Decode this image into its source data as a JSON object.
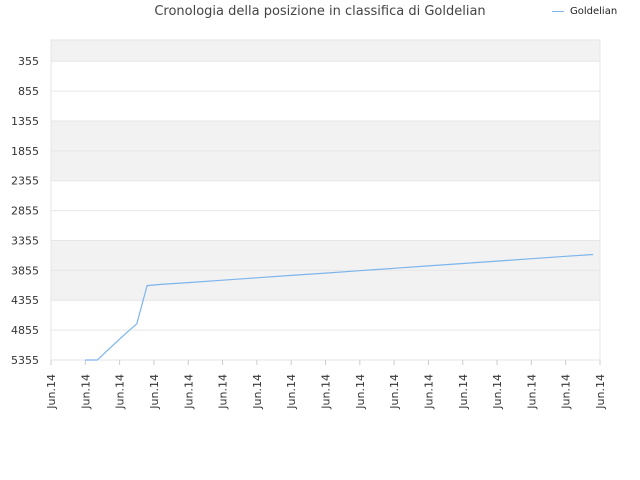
{
  "chart_data": {
    "type": "line",
    "title": "Cronologia della posizione in classifica di Goldelian",
    "ylim": [
      0,
      5355
    ],
    "y_inverted": true,
    "y_ticks": [
      355,
      855,
      1355,
      1855,
      2355,
      2855,
      3355,
      3855,
      4355,
      4855,
      5355
    ],
    "x_tick_labels": [
      "Jun.14",
      "Jun.14",
      "Jun.14",
      "Jun.14",
      "Jun.14",
      "Jun.14",
      "Jun.14",
      "Jun.14",
      "Jun.14",
      "Jun.14",
      "Jun.14",
      "Jun.14",
      "Jun.14",
      "Jun.14",
      "Jun.14",
      "Jun.14",
      "Jun.14"
    ],
    "legend_position": "top-right",
    "grid": true,
    "series": [
      {
        "name": "Goldelian",
        "color": "#7cb5ec",
        "points": [
          [
            1.0,
            5355
          ],
          [
            1.35,
            5355
          ],
          [
            1.8,
            5110
          ],
          [
            2.2,
            4900
          ],
          [
            2.5,
            4750
          ],
          [
            2.8,
            4110
          ],
          [
            3.2,
            4090
          ],
          [
            4.0,
            4060
          ],
          [
            5.0,
            4020
          ],
          [
            6.0,
            3980
          ],
          [
            7.0,
            3940
          ],
          [
            8.0,
            3900
          ],
          [
            9.0,
            3860
          ],
          [
            10.0,
            3820
          ],
          [
            11.0,
            3780
          ],
          [
            12.0,
            3740
          ],
          [
            13.0,
            3700
          ],
          [
            14.0,
            3660
          ],
          [
            15.0,
            3620
          ],
          [
            15.8,
            3590
          ]
        ]
      }
    ]
  }
}
